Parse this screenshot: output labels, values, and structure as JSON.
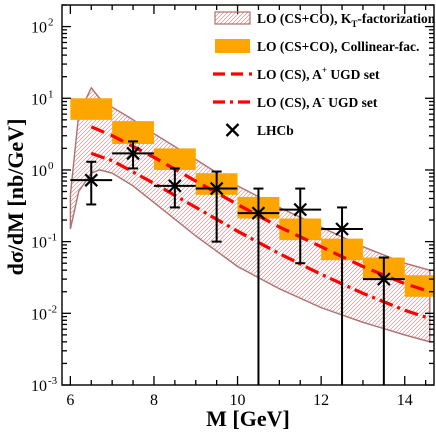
{
  "chart_data": {
    "type": "line",
    "xlabel": "M [GeV]",
    "ylabel": "dσ/dM [nb/GeV]",
    "xlim": [
      5.8,
      14.7
    ],
    "ylim": [
      0.001,
      200
    ],
    "yscale": "log",
    "x_ticks": [
      6,
      8,
      10,
      12,
      14
    ],
    "x_tick_labels": [
      "6",
      "8",
      "10",
      "12",
      "14"
    ],
    "y_ticks": [
      0.001,
      0.01,
      0.1,
      1,
      10,
      100
    ],
    "y_tick_labels": [
      {
        "base": "10",
        "exp": "-3"
      },
      {
        "base": "10",
        "exp": "-2"
      },
      {
        "base": "10",
        "exp": "-1"
      },
      {
        "base": "10",
        "exp": "0"
      },
      {
        "base": "10",
        "exp": "1"
      },
      {
        "base": "10",
        "exp": "2"
      }
    ],
    "legend_position": "top-right",
    "legend": [
      {
        "style": "hatched-band",
        "text": "LO (CS+CO), K",
        "sub": "T",
        "text_after": "-factorization"
      },
      {
        "style": "orange-box",
        "text": "LO (CS+CO), Collinear-fac."
      },
      {
        "style": "red-dashed",
        "text": "LO (CS), A",
        "sup": "+",
        "text_after": " UGD set"
      },
      {
        "style": "red-dashdot",
        "text": "LO (CS), A",
        "sup": "-",
        "text_after": " UGD set"
      },
      {
        "style": "cross",
        "text": "LHCb"
      }
    ],
    "series": [
      {
        "name": "LO (CS+CO), KT-factorization",
        "style": "band",
        "color": "#b07070",
        "x": [
          6.0,
          6.2,
          6.5,
          6.7,
          7.0,
          7.5,
          8.0,
          9.0,
          10.0,
          11.0,
          12.0,
          13.0,
          14.0,
          14.6
        ],
        "upper": [
          0.45,
          6.0,
          14.0,
          10.0,
          7.5,
          5.0,
          3.2,
          1.4,
          0.6,
          0.3,
          0.16,
          0.085,
          0.05,
          0.04
        ],
        "lower": [
          0.15,
          0.5,
          0.9,
          1.0,
          0.9,
          0.6,
          0.35,
          0.12,
          0.045,
          0.022,
          0.012,
          0.0075,
          0.005,
          0.004
        ]
      },
      {
        "name": "LO (CS+CO), Collinear-fac.",
        "style": "boxes",
        "color": "#ffa500",
        "boxes": [
          {
            "x0": 6.0,
            "x1": 7.0,
            "y0": 5.0,
            "y1": 10.0
          },
          {
            "x0": 7.0,
            "x1": 8.0,
            "y0": 2.3,
            "y1": 4.8
          },
          {
            "x0": 8.0,
            "x1": 9.0,
            "y0": 1.0,
            "y1": 2.0
          },
          {
            "x0": 9.0,
            "x1": 10.0,
            "y0": 0.45,
            "y1": 0.9
          },
          {
            "x0": 10.0,
            "x1": 11.0,
            "y0": 0.21,
            "y1": 0.42
          },
          {
            "x0": 11.0,
            "x1": 12.0,
            "y0": 0.105,
            "y1": 0.21
          },
          {
            "x0": 12.0,
            "x1": 13.0,
            "y0": 0.055,
            "y1": 0.11
          },
          {
            "x0": 13.0,
            "x1": 14.0,
            "y0": 0.03,
            "y1": 0.06
          },
          {
            "x0": 14.0,
            "x1": 14.7,
            "y0": 0.017,
            "y1": 0.034
          }
        ]
      },
      {
        "name": "LO (CS), A+ UGD set",
        "style": "dashed",
        "color": "#ff0000",
        "x": [
          6.5,
          7.0,
          8.0,
          9.0,
          10.0,
          11.0,
          12.0,
          13.0,
          14.0,
          14.6
        ],
        "y": [
          4.0,
          3.0,
          1.5,
          0.7,
          0.33,
          0.16,
          0.085,
          0.045,
          0.026,
          0.02
        ]
      },
      {
        "name": "LO (CS), A- UGD set",
        "style": "dashdot",
        "color": "#ff0000",
        "x": [
          6.5,
          7.0,
          8.0,
          9.0,
          10.0,
          11.0,
          12.0,
          13.0,
          14.0,
          14.6
        ],
        "y": [
          1.7,
          1.35,
          0.65,
          0.3,
          0.14,
          0.068,
          0.035,
          0.019,
          0.011,
          0.0085
        ]
      },
      {
        "name": "LHCb",
        "style": "points",
        "color": "#000000",
        "points": [
          {
            "x": 6.5,
            "y": 0.72,
            "xerr": 0.5,
            "ylo": 0.33,
            "yhi": 1.3
          },
          {
            "x": 7.5,
            "y": 1.7,
            "xerr": 0.5,
            "ylo": 1.05,
            "yhi": 2.5
          },
          {
            "x": 8.5,
            "y": 0.6,
            "xerr": 0.5,
            "ylo": 0.3,
            "yhi": 1.05
          },
          {
            "x": 9.5,
            "y": 0.55,
            "xerr": 0.5,
            "ylo": 0.1,
            "yhi": 0.95
          },
          {
            "x": 10.5,
            "y": 0.25,
            "xerr": 0.5,
            "ylo": 0.001,
            "yhi": 0.55
          },
          {
            "x": 11.5,
            "y": 0.28,
            "xerr": 0.5,
            "ylo": 0.05,
            "yhi": 0.55
          },
          {
            "x": 12.5,
            "y": 0.15,
            "xerr": 0.5,
            "ylo": 0.001,
            "yhi": 0.3
          },
          {
            "x": 13.5,
            "y": 0.03,
            "xerr": 0.5,
            "ylo": 0.001,
            "yhi": 0.06
          }
        ]
      }
    ]
  }
}
